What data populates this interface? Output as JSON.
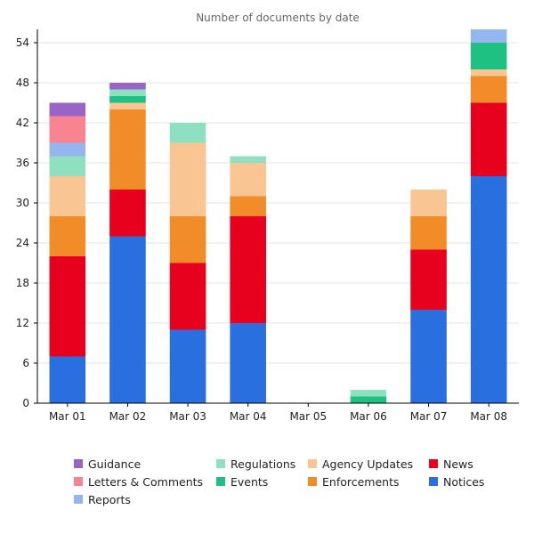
{
  "chart_data": {
    "type": "bar",
    "stacked": true,
    "title": "Number of documents by date",
    "xlabel": "",
    "ylabel": "",
    "ylim": [
      0,
      56
    ],
    "yticks": [
      0,
      6,
      12,
      18,
      24,
      30,
      36,
      42,
      48,
      54
    ],
    "grid": true,
    "legend_position": "bottom",
    "categories": [
      "Mar 01",
      "Mar 02",
      "Mar 03",
      "Mar 04",
      "Mar 05",
      "Mar 06",
      "Mar 07",
      "Mar 08"
    ],
    "series": [
      {
        "name": "Notices",
        "color": "#2a6fe0",
        "values": [
          7,
          25,
          11,
          12,
          0,
          0,
          14,
          34
        ]
      },
      {
        "name": "News",
        "color": "#e8001f",
        "values": [
          15,
          7,
          10,
          16,
          0,
          0,
          9,
          11
        ]
      },
      {
        "name": "Enforcements",
        "color": "#f28c28",
        "values": [
          6,
          12,
          7,
          3,
          0,
          0,
          5,
          4
        ]
      },
      {
        "name": "Agency Updates",
        "color": "#f8c593",
        "values": [
          6,
          1,
          11,
          5,
          0,
          0,
          4,
          1
        ]
      },
      {
        "name": "Events",
        "color": "#1ec182",
        "values": [
          0,
          1,
          0,
          0,
          0,
          1,
          0,
          4
        ]
      },
      {
        "name": "Regulations",
        "color": "#8ee0c1",
        "values": [
          3,
          1,
          3,
          1,
          0,
          1,
          0,
          0
        ]
      },
      {
        "name": "Reports",
        "color": "#94b6ef",
        "values": [
          2,
          0,
          0,
          0,
          0,
          0,
          0,
          2
        ]
      },
      {
        "name": "Letters & Comments",
        "color": "#f78490",
        "values": [
          4,
          0,
          0,
          0,
          0,
          0,
          0,
          0
        ]
      },
      {
        "name": "Guidance",
        "color": "#9a63c6",
        "values": [
          2,
          1,
          0,
          0,
          0,
          0,
          0,
          0
        ]
      }
    ]
  },
  "legend": {
    "guidance": "Guidance",
    "letters": "Letters & Comments",
    "reports": "Reports",
    "regulations": "Regulations",
    "events": "Events",
    "agency": "Agency Updates",
    "enforcements": "Enforcements",
    "news": "News",
    "notices": "Notices"
  }
}
